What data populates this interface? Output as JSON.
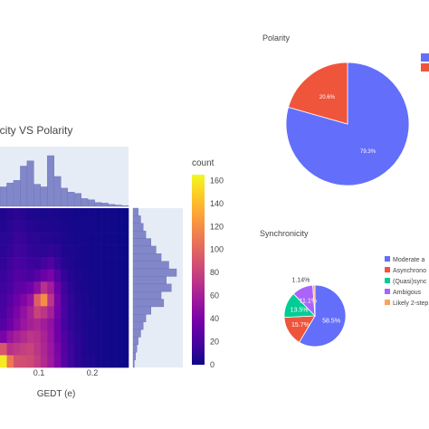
{
  "colors": {
    "blue": "#636efa",
    "red": "#ef553b",
    "green": "#00cc96",
    "purple": "#ab63fa",
    "orange": "#ffa15a",
    "marginal": "#8187c8",
    "marginal_bg": "#e5ecf6"
  },
  "chart_data": [
    {
      "id": "heatmap",
      "type": "heatmap",
      "title": "icity VS Polarity",
      "xlabel": "GEDT (e)",
      "ylabel": "",
      "xticks": [
        "0.1",
        "0.2"
      ],
      "colorbar": {
        "title": "count",
        "ticks": [
          "0",
          "20",
          "40",
          "60",
          "80",
          "100",
          "120",
          "140",
          "160"
        ],
        "range": [
          0,
          165
        ],
        "colorscale": [
          "#0d0887",
          "#46039f",
          "#7201a8",
          "#9c179e",
          "#bd3786",
          "#d8576b",
          "#ed7953",
          "#fb9f3a",
          "#fdca26",
          "#f0f921"
        ]
      },
      "cells": [
        [
          6,
          8,
          10,
          8,
          6,
          5,
          4,
          5,
          4,
          3,
          3,
          2,
          2,
          2,
          1,
          1,
          1,
          0,
          0
        ],
        [
          7,
          9,
          12,
          10,
          8,
          7,
          6,
          6,
          5,
          4,
          3,
          3,
          2,
          2,
          1,
          1,
          1,
          0,
          0
        ],
        [
          9,
          11,
          14,
          13,
          10,
          9,
          8,
          8,
          7,
          5,
          4,
          3,
          3,
          2,
          2,
          1,
          1,
          0,
          0
        ],
        [
          10,
          13,
          16,
          15,
          12,
          11,
          10,
          12,
          9,
          6,
          5,
          4,
          3,
          2,
          2,
          1,
          1,
          1,
          0
        ],
        [
          12,
          16,
          20,
          18,
          15,
          14,
          18,
          22,
          14,
          8,
          6,
          4,
          3,
          2,
          2,
          1,
          1,
          1,
          0
        ],
        [
          14,
          18,
          24,
          22,
          20,
          26,
          34,
          40,
          24,
          12,
          8,
          5,
          4,
          3,
          2,
          1,
          1,
          1,
          0
        ],
        [
          16,
          20,
          28,
          30,
          36,
          48,
          70,
          58,
          34,
          16,
          10,
          6,
          4,
          3,
          2,
          2,
          1,
          1,
          0
        ],
        [
          18,
          24,
          34,
          42,
          52,
          96,
          120,
          72,
          40,
          18,
          12,
          7,
          5,
          3,
          2,
          2,
          1,
          1,
          0
        ],
        [
          20,
          30,
          40,
          50,
          62,
          80,
          72,
          60,
          38,
          20,
          12,
          8,
          5,
          4,
          2,
          2,
          1,
          1,
          0
        ],
        [
          24,
          34,
          44,
          54,
          60,
          64,
          58,
          50,
          34,
          18,
          12,
          8,
          5,
          4,
          3,
          2,
          1,
          1,
          0
        ],
        [
          40,
          52,
          60,
          66,
          72,
          70,
          62,
          52,
          36,
          22,
          14,
          9,
          6,
          4,
          3,
          2,
          1,
          1,
          0
        ],
        [
          92,
          70,
          74,
          78,
          80,
          72,
          64,
          54,
          40,
          24,
          16,
          10,
          6,
          4,
          3,
          2,
          1,
          1,
          0
        ],
        [
          160,
          110,
          88,
          86,
          84,
          76,
          66,
          56,
          42,
          26,
          16,
          10,
          7,
          5,
          3,
          2,
          1,
          1,
          0
        ]
      ],
      "top_marginal": [
        30,
        36,
        40,
        62,
        70,
        34,
        30,
        78,
        46,
        28,
        22,
        20,
        12,
        10,
        6,
        5,
        3,
        2,
        1
      ],
      "right_marginal": [
        4,
        6,
        8,
        10,
        14,
        18,
        22,
        28,
        34,
        26,
        30,
        22,
        24,
        14,
        10,
        8,
        6,
        4,
        3,
        2,
        1
      ]
    },
    {
      "id": "polarity-pie",
      "type": "pie",
      "title": "Polarity",
      "slices": [
        {
          "label": "",
          "value": 79.3,
          "text": "79.3%",
          "color": "#636efa"
        },
        {
          "label": "",
          "value": 20.6,
          "text": "20.6%",
          "color": "#ef553b"
        }
      ]
    },
    {
      "id": "synchronicity-pie",
      "type": "pie",
      "title": "Synchronicity",
      "slices": [
        {
          "label": "Moderate a",
          "value": 58.5,
          "text": "58.5%",
          "color": "#636efa"
        },
        {
          "label": "Asynchrono",
          "value": 15.7,
          "text": "15.7%",
          "color": "#ef553b"
        },
        {
          "label": "(Quasi)sync",
          "value": 13.5,
          "text": "13.5%",
          "color": "#00cc96"
        },
        {
          "label": "Ambigous",
          "value": 11.1,
          "text": "11.1%",
          "color": "#ab63fa"
        },
        {
          "label": "Likely 2-step",
          "value": 1.14,
          "text": "1.14%",
          "color": "#ffa15a"
        }
      ]
    }
  ]
}
